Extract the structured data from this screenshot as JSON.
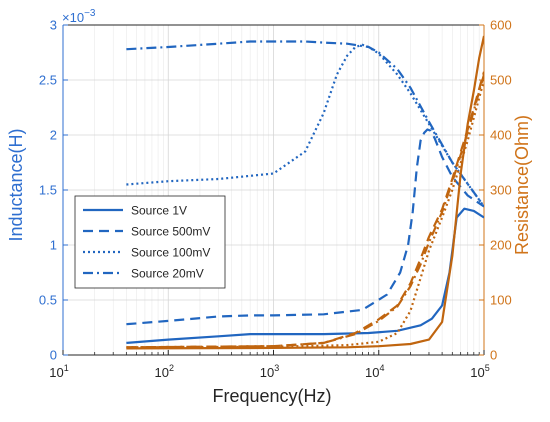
{
  "chart_data": {
    "type": "line",
    "xlabel": "Frequency(Hz)",
    "ylabel_left": "Inductance(H)",
    "ylabel_right": "Resistance(Ohm)",
    "x_scale": "log",
    "xlim": [
      10,
      100000
    ],
    "ylim_left": [
      0,
      3
    ],
    "ylim_right": [
      0,
      600
    ],
    "left_exponent_label": "×10",
    "left_exponent_power": "−3",
    "grid": true,
    "legend_position": "center-left",
    "x_ticks": [
      {
        "value": 10,
        "base": "10",
        "exp": "1"
      },
      {
        "value": 100,
        "base": "10",
        "exp": "2"
      },
      {
        "value": 1000,
        "base": "10",
        "exp": "3"
      },
      {
        "value": 10000,
        "base": "10",
        "exp": "4"
      },
      {
        "value": 100000,
        "base": "10",
        "exp": "5"
      }
    ],
    "y_left_ticks": [
      {
        "value": 0,
        "label": "0"
      },
      {
        "value": 0.5,
        "label": "0.5"
      },
      {
        "value": 1,
        "label": "1"
      },
      {
        "value": 1.5,
        "label": "1.5"
      },
      {
        "value": 2,
        "label": "2"
      },
      {
        "value": 2.5,
        "label": "2.5"
      },
      {
        "value": 3,
        "label": "3"
      }
    ],
    "y_right_ticks": [
      {
        "value": 0,
        "label": "0"
      },
      {
        "value": 100,
        "label": "100"
      },
      {
        "value": 200,
        "label": "200"
      },
      {
        "value": 300,
        "label": "300"
      },
      {
        "value": 400,
        "label": "400"
      },
      {
        "value": 500,
        "label": "500"
      },
      {
        "value": 600,
        "label": "600"
      }
    ],
    "colors": {
      "inductance": "#2166c0",
      "resistance": "#c0650f",
      "left_axis": "#2f6fd0",
      "right_axis": "#d0741a"
    },
    "series": [
      {
        "name": "Source 1V",
        "axis": "left",
        "style": "solid",
        "x": [
          40,
          100,
          300,
          600,
          1000,
          3000,
          8000,
          15000,
          25000,
          32000,
          40000,
          47000,
          55000,
          65000,
          80000,
          100000
        ],
        "y": [
          0.11,
          0.14,
          0.17,
          0.19,
          0.19,
          0.19,
          0.2,
          0.22,
          0.27,
          0.33,
          0.45,
          0.75,
          1.25,
          1.33,
          1.31,
          1.25
        ]
      },
      {
        "name": "Source 500mV",
        "axis": "left",
        "style": "dashed",
        "x": [
          40,
          100,
          300,
          600,
          1000,
          3000,
          7000,
          12000,
          16000,
          19000,
          21000,
          23000,
          25000,
          27000,
          29000,
          31000,
          34000,
          40000,
          50000,
          70000,
          100000
        ],
        "y": [
          0.28,
          0.31,
          0.35,
          0.36,
          0.36,
          0.37,
          0.41,
          0.55,
          0.75,
          1.0,
          1.3,
          1.7,
          1.95,
          2.02,
          2.05,
          2.04,
          1.97,
          1.8,
          1.62,
          1.45,
          1.35
        ]
      },
      {
        "name": "Source 100mV",
        "axis": "left",
        "style": "dotted",
        "x": [
          40,
          100,
          300,
          1000,
          2000,
          3000,
          4000,
          5000,
          6000,
          7000,
          8000,
          10000,
          15000,
          20000,
          30000,
          50000,
          100000
        ],
        "y": [
          1.55,
          1.58,
          1.6,
          1.65,
          1.85,
          2.2,
          2.55,
          2.72,
          2.8,
          2.82,
          2.8,
          2.74,
          2.55,
          2.38,
          2.1,
          1.75,
          1.35
        ]
      },
      {
        "name": "Source 20mV",
        "axis": "left",
        "style": "dashdot",
        "x": [
          40,
          100,
          300,
          600,
          1000,
          2000,
          3000,
          5000,
          8000,
          10000,
          15000,
          20000,
          30000,
          50000,
          100000
        ],
        "y": [
          2.78,
          2.8,
          2.83,
          2.85,
          2.85,
          2.85,
          2.84,
          2.83,
          2.8,
          2.75,
          2.6,
          2.43,
          2.12,
          1.75,
          1.35
        ]
      },
      {
        "axis": "right",
        "style": "solid",
        "x": [
          40,
          1000,
          5000,
          10000,
          20000,
          30000,
          40000,
          50000,
          60000,
          70000,
          80000,
          90000,
          100000
        ],
        "y": [
          12,
          13,
          14,
          16,
          20,
          28,
          60,
          180,
          330,
          420,
          480,
          540,
          580
        ]
      },
      {
        "axis": "right",
        "style": "dashed",
        "x": [
          40,
          1000,
          3000,
          6000,
          10000,
          15000,
          20000,
          25000,
          30000,
          40000,
          50000,
          70000,
          100000
        ],
        "y": [
          14,
          16,
          22,
          40,
          65,
          90,
          130,
          175,
          215,
          265,
          320,
          410,
          515
        ]
      },
      {
        "axis": "right",
        "style": "dotted",
        "x": [
          40,
          1000,
          5000,
          10000,
          15000,
          20000,
          25000,
          30000,
          40000,
          50000,
          70000,
          100000
        ],
        "y": [
          14,
          15,
          18,
          24,
          40,
          80,
          140,
          190,
          250,
          300,
          390,
          500
        ]
      },
      {
        "axis": "right",
        "style": "dashdot",
        "x": [
          40,
          1000,
          3000,
          6000,
          10000,
          15000,
          20000,
          25000,
          30000,
          40000,
          50000,
          70000,
          100000
        ],
        "y": [
          14,
          16,
          22,
          38,
          62,
          88,
          125,
          165,
          205,
          260,
          315,
          405,
          510
        ]
      }
    ]
  }
}
